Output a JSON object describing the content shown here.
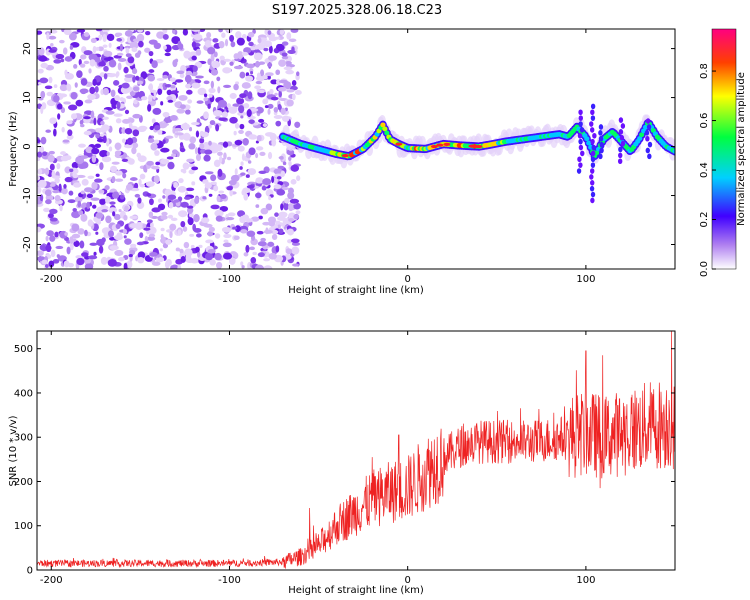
{
  "title": "S197.2025.328.06.18.C23",
  "chart_data": [
    {
      "type": "heatmap",
      "xlabel": "Height of straight line (km)",
      "ylabel": "Frequency (Hz)",
      "xlim": [
        -208,
        150
      ],
      "ylim": [
        -25,
        24
      ],
      "xticks": [
        -200,
        -100,
        0,
        100
      ],
      "yticks": [
        -20,
        -10,
        0,
        10,
        20
      ],
      "noise_region_x": [
        -208,
        -68
      ],
      "ridge_x": [
        -70,
        -60,
        -50,
        -40,
        -33,
        -25,
        -18,
        -14,
        -10,
        -5,
        0,
        10,
        20,
        30,
        40,
        45,
        55,
        65,
        75,
        85,
        90,
        95,
        100,
        105,
        110,
        115,
        120,
        125,
        130,
        135,
        140,
        145,
        150
      ],
      "ridge_freq": [
        2,
        0.5,
        -0.5,
        -1.5,
        -2,
        -0.5,
        2,
        4.5,
        1.5,
        0.5,
        -0.3,
        -0.5,
        0.5,
        0.2,
        0,
        0.3,
        1,
        1.5,
        2,
        2.5,
        2,
        4,
        2,
        -2,
        1.5,
        3,
        1,
        -1,
        1.5,
        5,
        2,
        0,
        -1
      ],
      "colorbar": {
        "label": "Normalized spectral amplitude",
        "range": [
          0,
          0.97
        ],
        "ticks": [
          "0.0",
          "0.2",
          "0.4",
          "0.6",
          "0.8"
        ]
      }
    },
    {
      "type": "line",
      "xlabel": "Height of straight line (km)",
      "ylabel": "SNR (10 * v/v)",
      "xlim": [
        -208,
        150
      ],
      "ylim": [
        0,
        540
      ],
      "xticks": [
        -200,
        -100,
        0,
        100
      ],
      "yticks": [
        0,
        100,
        200,
        300,
        400,
        500
      ],
      "color": "#ee2222",
      "trend_x": [
        -208,
        -150,
        -100,
        -70,
        -60,
        -50,
        -40,
        -30,
        -20,
        -10,
        0,
        10,
        20,
        30,
        40,
        50,
        60,
        70,
        80,
        90,
        100,
        110,
        120,
        130,
        140,
        150
      ],
      "trend_y": [
        15,
        15,
        15,
        18,
        30,
        55,
        100,
        130,
        160,
        175,
        185,
        220,
        255,
        280,
        290,
        290,
        290,
        290,
        295,
        300,
        310,
        300,
        310,
        320,
        330,
        330
      ],
      "spikes": [
        [
          -55,
          140
        ],
        [
          -20,
          255
        ],
        [
          -5,
          305
        ],
        [
          -1,
          210
        ],
        [
          100,
          495
        ],
        [
          108,
          185
        ],
        [
          148,
          540
        ]
      ]
    }
  ]
}
